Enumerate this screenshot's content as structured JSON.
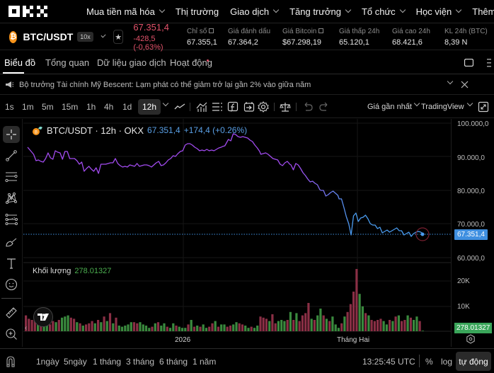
{
  "nav": {
    "logo": "OKX",
    "items": [
      {
        "label": "Mua tiền mã hóa",
        "dropdown": true
      },
      {
        "label": "Thị trường",
        "dropdown": false
      },
      {
        "label": "Giao dịch",
        "dropdown": true
      },
      {
        "label": "Tăng trưởng",
        "dropdown": true
      },
      {
        "label": "Tổ chức",
        "dropdown": true
      },
      {
        "label": "Học viện",
        "dropdown": true
      },
      {
        "label": "Thêm",
        "dropdown": true
      }
    ]
  },
  "ticker": {
    "coin_glyph": "₿",
    "pair": "BTC/USDT",
    "leverage": "10x",
    "last_price": "67.351,4",
    "change": "-428,5 (-0,63%)",
    "stats": [
      {
        "label": "Chỉ số",
        "value": "67.355,1",
        "external": true
      },
      {
        "label": "Giá đánh dấu",
        "value": "67.364,2",
        "external": false
      },
      {
        "label": "Giá Bitcoin",
        "value": "$67.298,19",
        "external": true
      },
      {
        "label": "Giá thấp 24h",
        "value": "65.120,1",
        "external": false
      },
      {
        "label": "Giá cao 24h",
        "value": "68.421,6",
        "external": false
      },
      {
        "label": "KL 24h (BTC)",
        "value": "8,39 N",
        "external": false
      }
    ]
  },
  "tabs": [
    {
      "label": "Biểu đồ",
      "active": true
    },
    {
      "label": "Tổng quan",
      "active": false
    },
    {
      "label": "Dữ liệu giao dịch",
      "active": false
    },
    {
      "label": "Hoạt động",
      "active": false,
      "dot": true
    }
  ],
  "news": {
    "text": "Bộ trưởng Tài chính Mỹ Bescent: Lạm phát có thể giảm trở lại gần 2% vào giữa năm"
  },
  "toolbar": {
    "timeframes": [
      "1s",
      "1m",
      "5m",
      "15m",
      "1h",
      "4h",
      "1d",
      "12h"
    ],
    "active_timeframe": "12h",
    "price_source": "Giá gần nhất",
    "chart_type": "TradingView"
  },
  "chart": {
    "legend_title": "BTC/USDT · 12h · OKX",
    "legend_price": "67.351,4",
    "legend_change": "+174,4 (+0.26%)",
    "y_labels": [
      "100.000,0",
      "90.000,0",
      "80.000,0",
      "70.000,0",
      "60.000,0"
    ],
    "price_tag": "67.351,4",
    "volume_label": "Khối lượng",
    "volume_value": "278.01327",
    "volume_y_labels": [
      "20K",
      "10K"
    ],
    "volume_tag": "278.01327",
    "x_labels": [
      "2026",
      "Tháng Hai"
    ],
    "line_color_start": "#a24bf0",
    "line_color_end": "#4a9cf0",
    "up_color": "#3a8a3e",
    "down_color": "#8a2f45"
  },
  "bottom": {
    "ranges": [
      "1ngày",
      "5ngày",
      "1 tháng",
      "3 tháng",
      "6 tháng",
      "1 năm"
    ],
    "time": "13:25:45 UTC",
    "percent": "%",
    "log": "log",
    "auto": "tự động"
  }
}
